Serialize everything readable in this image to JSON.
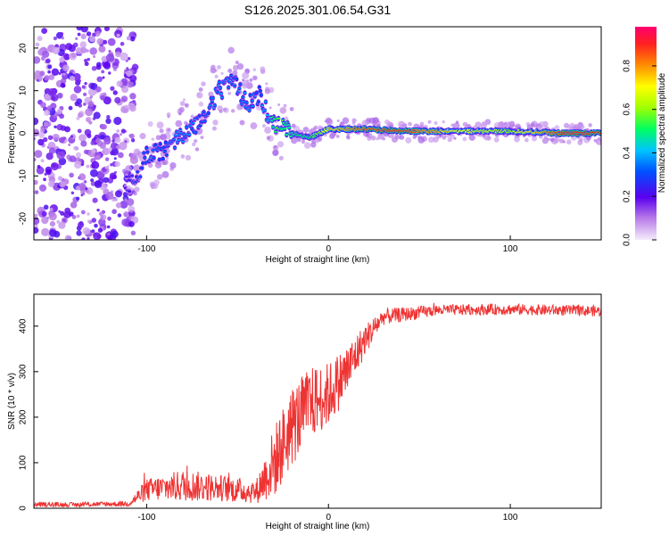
{
  "title": "S126.2025.301.06.54.G31",
  "chart_data": [
    {
      "type": "heatmap",
      "xlabel": "Height of straight line (km)",
      "ylabel": "Frequency (Hz)",
      "xlim": [
        -162,
        150
      ],
      "ylim": [
        -25,
        25
      ],
      "x_ticks": [
        -100,
        0,
        100
      ],
      "y_ticks": [
        -20,
        -10,
        0,
        10,
        20
      ],
      "grid": false,
      "colorbar": {
        "label": "Normalized spectral amplitude",
        "range": [
          0,
          0.98
        ],
        "ticks": [
          0,
          0.2,
          0.4,
          0.6,
          0.8
        ]
      },
      "ridge": [
        {
          "x": -110,
          "y": -12,
          "a": 0.2
        },
        {
          "x": -105,
          "y": -10,
          "a": 0.25
        },
        {
          "x": -100,
          "y": -5,
          "a": 0.3
        },
        {
          "x": -90,
          "y": -4,
          "a": 0.3
        },
        {
          "x": -80,
          "y": 0,
          "a": 0.35
        },
        {
          "x": -70,
          "y": 3,
          "a": 0.3
        },
        {
          "x": -60,
          "y": 10,
          "a": 0.35
        },
        {
          "x": -52,
          "y": 12,
          "a": 0.3
        },
        {
          "x": -45,
          "y": 7,
          "a": 0.35
        },
        {
          "x": -38,
          "y": 9,
          "a": 0.3
        },
        {
          "x": -32,
          "y": 3,
          "a": 0.4
        },
        {
          "x": -28,
          "y": 2,
          "a": 0.55
        },
        {
          "x": -20,
          "y": 0,
          "a": 0.45
        },
        {
          "x": -10,
          "y": -1,
          "a": 0.5
        },
        {
          "x": 0,
          "y": 1,
          "a": 0.7
        },
        {
          "x": 20,
          "y": 1,
          "a": 0.85
        },
        {
          "x": 40,
          "y": 0.5,
          "a": 0.9
        },
        {
          "x": 70,
          "y": 0.5,
          "a": 0.7
        },
        {
          "x": 100,
          "y": 0.5,
          "a": 0.6
        },
        {
          "x": 130,
          "y": 0,
          "a": 0.9
        },
        {
          "x": 150,
          "y": 0,
          "a": 0.9
        }
      ]
    },
    {
      "type": "line",
      "xlabel": "Height of straight line (km)",
      "ylabel": "SNR (10 * v/v)",
      "xlim": [
        -162,
        150
      ],
      "ylim": [
        0,
        470
      ],
      "x_ticks": [
        -100,
        0,
        100
      ],
      "y_ticks": [
        0,
        100,
        200,
        300,
        400
      ],
      "grid": false,
      "series": [
        {
          "color": "#ee3333",
          "envelope": [
            {
              "x": -162,
              "mean": 8,
              "noise": 5
            },
            {
              "x": -140,
              "mean": 8,
              "noise": 5
            },
            {
              "x": -110,
              "mean": 10,
              "noise": 6
            },
            {
              "x": -100,
              "mean": 40,
              "noise": 25
            },
            {
              "x": -80,
              "mean": 50,
              "noise": 35
            },
            {
              "x": -60,
              "mean": 45,
              "noise": 30
            },
            {
              "x": -40,
              "mean": 35,
              "noise": 25
            },
            {
              "x": -30,
              "mean": 100,
              "noise": 80
            },
            {
              "x": -20,
              "mean": 180,
              "noise": 90
            },
            {
              "x": -10,
              "mean": 230,
              "noise": 80
            },
            {
              "x": 0,
              "mean": 250,
              "noise": 70
            },
            {
              "x": 10,
              "mean": 300,
              "noise": 60
            },
            {
              "x": 20,
              "mean": 370,
              "noise": 35
            },
            {
              "x": 30,
              "mean": 420,
              "noise": 18
            },
            {
              "x": 60,
              "mean": 435,
              "noise": 12
            },
            {
              "x": 100,
              "mean": 437,
              "noise": 12
            },
            {
              "x": 150,
              "mean": 433,
              "noise": 12
            }
          ]
        }
      ]
    }
  ]
}
